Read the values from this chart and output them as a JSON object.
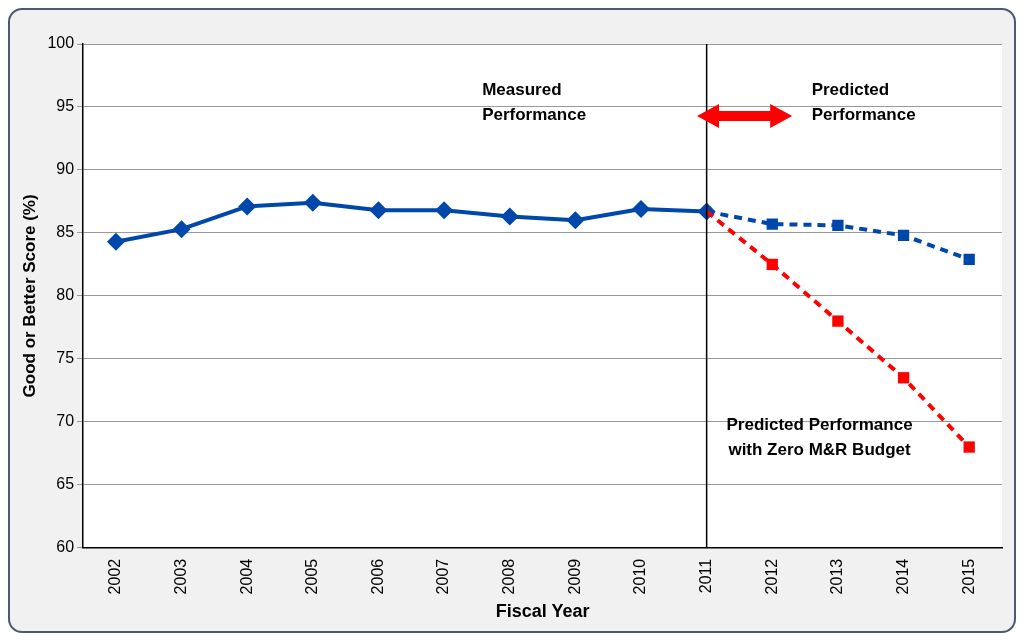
{
  "chart_data": {
    "type": "line",
    "xlabel": "Fiscal Year",
    "ylabel": "Good or Better Score (%)",
    "categories": [
      "2002",
      "2003",
      "2004",
      "2005",
      "2006",
      "2007",
      "2008",
      "2009",
      "2010",
      "2011",
      "2012",
      "2013",
      "2014",
      "2015"
    ],
    "series": [
      {
        "color": "#0047ab",
        "values": [
          84.3,
          85.3,
          87.1,
          87.4,
          86.8,
          86.8,
          86.3,
          86.0,
          86.9,
          86.7,
          null,
          null,
          null,
          null
        ],
        "marker": "diamond",
        "line_style": "solid"
      },
      {
        "color": "#0047ab",
        "values": [
          null,
          null,
          null,
          null,
          null,
          null,
          null,
          null,
          null,
          86.7,
          85.7,
          85.6,
          84.8,
          82.9
        ],
        "marker": "square",
        "line_style": "dashed"
      },
      {
        "color": "#ff0000",
        "values": [
          null,
          null,
          null,
          null,
          null,
          null,
          null,
          null,
          null,
          86.7,
          82.5,
          78.0,
          73.5,
          68.0
        ],
        "marker": "square",
        "line_style": "dashed"
      }
    ],
    "ylim": [
      60,
      100
    ],
    "yticks": [
      60,
      65,
      70,
      75,
      80,
      85,
      90,
      95,
      100
    ],
    "grid": "y",
    "legend": false,
    "ref_lines": [
      {
        "axis": "x",
        "value": "2011",
        "color": "#000000"
      }
    ],
    "annotations": [
      "Measured\nPerformance",
      "Predicted\nPerformance",
      "Predicted Performance\nwith Zero M&R Budget"
    ]
  }
}
